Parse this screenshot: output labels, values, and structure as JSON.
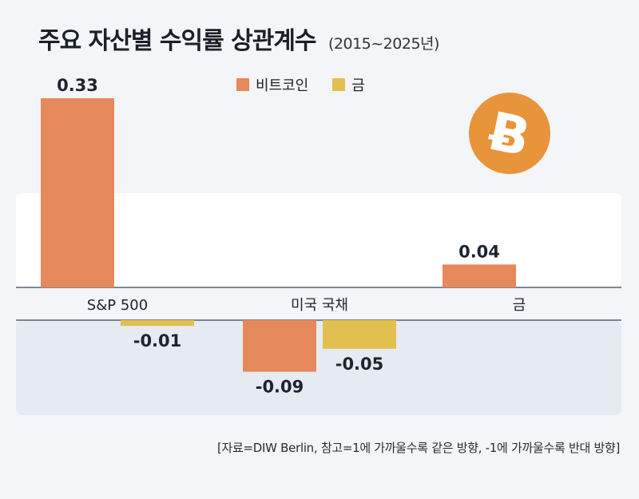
{
  "title": "주요 자산별 수익률 상관계수",
  "subtitle": "(2015~2025년)",
  "source": "[자료=DIW Berlin, 참고=1에 가까울수록 같은 방향, -1에 가까울수록 반대 방향]",
  "bitcoin_icon": "bitcoin-coin-icon",
  "colors": {
    "bitcoin": "#e5895a",
    "gold": "#e2c04f",
    "coin": "#e8943a",
    "positive_bg": "#ffffff",
    "negative_bg": "#e6ebf2"
  },
  "chart_data": {
    "type": "bar",
    "title": "주요 자산별 수익률 상관계수",
    "subtitle": "(2015~2025년)",
    "categories": [
      "S&P 500",
      "미국 국채",
      "금"
    ],
    "series": [
      {
        "name": "비트코인",
        "values": [
          0.33,
          -0.09,
          0.04
        ],
        "labels": [
          "0.33",
          "-0.09",
          "0.04"
        ]
      },
      {
        "name": "금",
        "values": [
          -0.01,
          -0.05,
          null
        ],
        "labels": [
          "-0.01",
          "-0.05",
          ""
        ]
      }
    ],
    "ylim": [
      -0.13,
      0.33
    ],
    "legend": "top-center",
    "grid": false
  }
}
